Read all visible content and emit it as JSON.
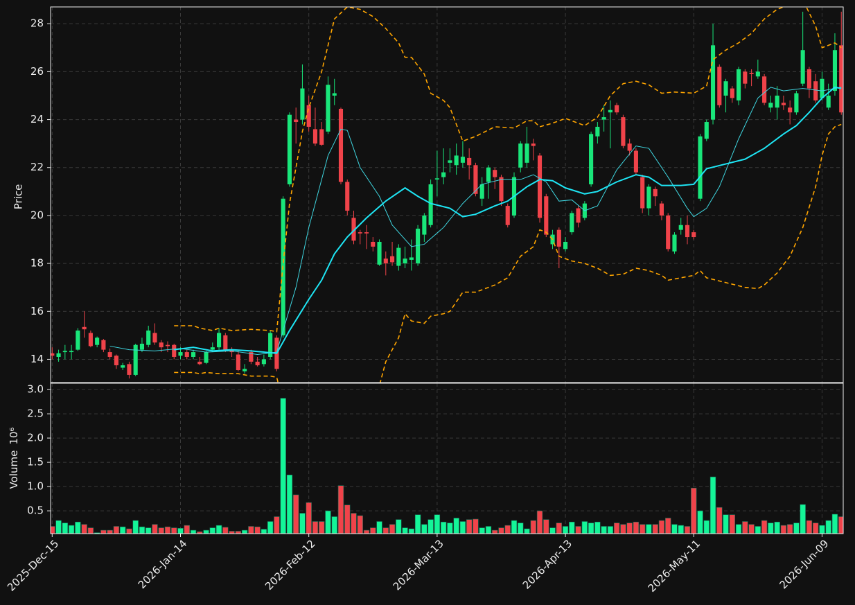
{
  "chart_data": [
    {
      "type": "candlestick",
      "ylabel": "Price",
      "up_color": "#19e67a",
      "down_color": "#f0434a",
      "grid": true,
      "xlim": [
        -0.25,
        123.3
      ],
      "ylim": [
        13.03,
        28.7
      ],
      "yticks": [
        14,
        16,
        18,
        20,
        22,
        24,
        26,
        28
      ],
      "open": [
        14.25,
        14.1,
        14.3,
        14.3,
        14.4,
        15.35,
        15.1,
        14.6,
        14.8,
        14.3,
        14.15,
        13.65,
        13.8,
        13.35,
        14.4,
        14.6,
        15.1,
        14.7,
        14.6,
        14.6,
        14.15,
        14.3,
        14.1,
        13.9,
        13.85,
        14.4,
        14.5,
        15.0,
        14.4,
        14.2,
        13.5,
        14.3,
        13.9,
        13.8,
        14.1,
        14.9,
        15.0,
        21.3,
        24.0,
        24.0,
        24.6,
        23.6,
        23.6,
        23.5,
        25.0,
        24.45,
        21.4,
        19.9,
        19.3,
        19.3,
        18.9,
        17.95,
        18.2,
        18.3,
        17.9,
        18.0,
        18.15,
        18.0,
        19.2,
        19.6,
        21.5,
        21.6,
        22.2,
        22.1,
        22.2,
        22.4,
        22.1,
        20.7,
        21.4,
        21.9,
        21.6,
        20.4,
        20.0,
        22.0,
        22.2,
        23.0,
        22.5,
        20.8,
        18.8,
        19.4,
        18.6,
        19.3,
        20.3,
        19.9,
        21.3,
        23.3,
        24.0,
        24.3,
        24.6,
        24.1,
        23.0,
        22.7,
        21.6,
        20.3,
        21.1,
        20.5,
        20.0,
        18.5,
        19.4,
        19.6,
        19.3,
        20.7,
        23.2,
        24.0,
        26.2,
        25.0,
        25.3,
        24.8,
        26.0,
        25.95,
        25.8,
        25.8,
        24.5,
        24.5,
        24.7,
        24.5,
        24.3,
        25.5,
        26.1,
        25.6,
        24.9,
        24.5,
        25.2,
        27.1
      ],
      "high": [
        14.5,
        14.4,
        14.6,
        14.6,
        15.3,
        16.0,
        15.2,
        14.95,
        14.85,
        14.45,
        14.2,
        13.85,
        13.9,
        14.65,
        14.9,
        15.4,
        15.5,
        14.8,
        14.75,
        14.65,
        14.5,
        14.4,
        14.4,
        14.1,
        14.35,
        14.7,
        15.3,
        15.1,
        14.5,
        14.4,
        13.8,
        14.4,
        14.1,
        14.2,
        15.2,
        15.0,
        20.8,
        24.3,
        24.5,
        26.3,
        25.0,
        24.5,
        23.9,
        25.8,
        25.7,
        24.5,
        21.5,
        20.2,
        19.4,
        19.6,
        19.1,
        19.0,
        18.5,
        18.9,
        18.8,
        18.7,
        19.0,
        19.6,
        20.1,
        21.5,
        22.7,
        22.8,
        22.8,
        23.0,
        23.1,
        22.8,
        22.2,
        21.6,
        22.1,
        22.0,
        21.7,
        20.5,
        21.8,
        23.1,
        23.7,
        23.2,
        22.6,
        20.9,
        19.4,
        19.5,
        19.1,
        20.2,
        20.4,
        20.6,
        23.5,
        23.9,
        24.6,
        24.8,
        24.7,
        24.2,
        23.2,
        22.8,
        21.7,
        21.3,
        21.2,
        20.6,
        20.1,
        19.3,
        19.9,
        20.0,
        19.4,
        23.4,
        24.0,
        28.0,
        26.3,
        25.7,
        25.4,
        26.2,
        26.1,
        26.1,
        26.5,
        25.9,
        25.0,
        25.4,
        25.0,
        24.8,
        25.2,
        28.5,
        26.2,
        25.9,
        26.0,
        25.5,
        27.6,
        28.5
      ],
      "low": [
        14.0,
        13.9,
        14.0,
        14.0,
        14.35,
        14.9,
        14.5,
        14.5,
        14.3,
        14.0,
        13.6,
        13.55,
        13.2,
        13.3,
        14.3,
        14.5,
        14.6,
        14.3,
        14.3,
        14.0,
        14.0,
        14.0,
        14.0,
        13.75,
        13.8,
        14.3,
        14.4,
        14.3,
        14.1,
        13.5,
        13.4,
        13.8,
        13.7,
        13.7,
        14.0,
        13.5,
        14.9,
        21.2,
        23.0,
        23.8,
        23.5,
        22.9,
        22.9,
        23.4,
        24.6,
        21.3,
        20.0,
        18.8,
        18.8,
        18.6,
        18.5,
        17.9,
        17.5,
        17.9,
        17.7,
        17.8,
        17.7,
        17.9,
        18.9,
        19.5,
        20.8,
        21.3,
        21.8,
        21.7,
        22.0,
        21.5,
        20.8,
        20.4,
        20.7,
        21.1,
        20.4,
        19.5,
        19.9,
        21.8,
        22.0,
        22.3,
        19.7,
        19.1,
        18.6,
        17.8,
        18.5,
        19.2,
        19.5,
        19.8,
        21.2,
        23.0,
        23.5,
        22.8,
        24.2,
        22.8,
        22.5,
        21.7,
        20.1,
        20.0,
        20.4,
        19.8,
        18.5,
        18.4,
        19.2,
        18.8,
        19.0,
        20.6,
        23.1,
        23.8,
        24.5,
        24.3,
        24.7,
        24.6,
        25.3,
        25.4,
        25.7,
        24.6,
        24.3,
        24.0,
        24.4,
        23.8,
        24.2,
        25.4,
        24.9,
        24.7,
        24.8,
        24.4,
        25.0,
        24.2
      ],
      "close": [
        14.15,
        14.25,
        14.35,
        14.35,
        15.2,
        15.25,
        14.55,
        14.9,
        14.4,
        14.1,
        13.75,
        13.75,
        13.35,
        14.6,
        14.65,
        15.2,
        14.7,
        14.5,
        14.55,
        14.1,
        14.3,
        14.1,
        14.3,
        13.8,
        14.3,
        14.5,
        15.1,
        14.4,
        14.3,
        13.55,
        13.6,
        13.9,
        13.75,
        14.0,
        15.1,
        13.6,
        20.7,
        24.2,
        23.9,
        25.3,
        23.7,
        23.0,
        22.95,
        25.45,
        25.1,
        21.4,
        20.2,
        18.95,
        19.25,
        19.25,
        18.7,
        18.9,
        18.0,
        18.05,
        18.65,
        18.2,
        18.25,
        19.45,
        20.0,
        21.3,
        21.55,
        21.8,
        22.3,
        22.5,
        22.45,
        22.1,
        20.9,
        21.3,
        22.0,
        21.6,
        20.6,
        19.6,
        21.6,
        23.0,
        23.0,
        22.9,
        19.9,
        19.2,
        19.2,
        18.7,
        18.9,
        20.1,
        19.7,
        20.5,
        23.4,
        23.7,
        24.1,
        24.4,
        24.3,
        22.9,
        22.7,
        21.8,
        20.3,
        21.2,
        20.8,
        20.0,
        18.6,
        19.2,
        19.6,
        19.1,
        19.1,
        23.3,
        23.9,
        27.1,
        24.6,
        25.6,
        24.9,
        26.1,
        25.5,
        25.9,
        26.0,
        24.7,
        24.7,
        25.0,
        24.6,
        24.3,
        25.1,
        26.9,
        25.3,
        24.8,
        25.7,
        25.0,
        26.9,
        24.3
      ],
      "series": [
        {
          "color": "#ffa500",
          "dash": true,
          "width": 1.6,
          "x": [
            19,
            22,
            23,
            25,
            26,
            28,
            31,
            34,
            35,
            36,
            37,
            39,
            40,
            42,
            44,
            46,
            48,
            50,
            52,
            54,
            55,
            56,
            58,
            59,
            61,
            62,
            64,
            66,
            69,
            72,
            74,
            75,
            76,
            78,
            80,
            83,
            85,
            87,
            89,
            91,
            93,
            95,
            97,
            100,
            102,
            103,
            105,
            107,
            109,
            111,
            113,
            117,
            119,
            120,
            122,
            123
          ],
          "values": [
            15.4,
            15.4,
            15.3,
            15.2,
            15.3,
            15.2,
            15.25,
            15.2,
            15.15,
            18.0,
            20.5,
            23.5,
            24.5,
            26.0,
            28.2,
            28.7,
            28.6,
            28.3,
            27.8,
            27.2,
            26.6,
            26.6,
            25.9,
            25.1,
            24.8,
            24.5,
            23.1,
            23.3,
            23.7,
            23.65,
            23.95,
            23.95,
            23.7,
            23.85,
            24.05,
            23.75,
            24.1,
            25.0,
            25.5,
            25.6,
            25.45,
            25.1,
            25.15,
            25.1,
            25.4,
            26.5,
            26.9,
            27.2,
            27.6,
            28.2,
            28.6,
            29.0,
            27.9,
            27.0,
            27.2,
            27.0
          ]
        },
        {
          "color": "#ffa500",
          "dash": true,
          "width": 1.6,
          "x": [
            19,
            22,
            23,
            24,
            26,
            29,
            31,
            34,
            35,
            36,
            51,
            52,
            54,
            55,
            56,
            58,
            59,
            61,
            62,
            64,
            66,
            69,
            71,
            73,
            75,
            76,
            77,
            78,
            79,
            81,
            83,
            85,
            87,
            89,
            91,
            93,
            95,
            96,
            98,
            100,
            101,
            102,
            105,
            108,
            110,
            111,
            113,
            115,
            117,
            119,
            120,
            121,
            122,
            123
          ],
          "values": [
            13.45,
            13.45,
            13.4,
            13.45,
            13.4,
            13.4,
            13.3,
            13.3,
            13.25,
            12.2,
            12.9,
            13.9,
            14.9,
            15.9,
            15.6,
            15.5,
            15.8,
            15.9,
            16.0,
            16.8,
            16.8,
            17.1,
            17.4,
            18.3,
            18.7,
            19.4,
            19.3,
            19.0,
            18.3,
            18.1,
            18.0,
            17.8,
            17.5,
            17.55,
            17.8,
            17.7,
            17.5,
            17.3,
            17.4,
            17.5,
            17.7,
            17.4,
            17.2,
            17.0,
            16.95,
            17.1,
            17.6,
            18.3,
            19.5,
            21.2,
            22.5,
            23.4,
            23.7,
            23.8
          ]
        },
        {
          "color": "#3fd6e0",
          "dash": false,
          "width": 1,
          "x": [
            9,
            12,
            16,
            20,
            24,
            28,
            32,
            35,
            38,
            40,
            43,
            45,
            46,
            48,
            51,
            53,
            56,
            58,
            61,
            64,
            67,
            70,
            73,
            75,
            77,
            79,
            81,
            83,
            85,
            88,
            91,
            93,
            96,
            99,
            100,
            102,
            104,
            107,
            110,
            112,
            114,
            117,
            120,
            123
          ],
          "values": [
            14.55,
            14.4,
            14.35,
            14.45,
            14.3,
            14.35,
            14.2,
            14.3,
            17.0,
            19.5,
            22.5,
            23.6,
            23.55,
            22.0,
            20.8,
            19.6,
            18.7,
            18.8,
            19.5,
            20.5,
            21.3,
            21.5,
            21.5,
            21.7,
            21.4,
            20.6,
            20.65,
            20.2,
            20.4,
            21.9,
            22.9,
            22.8,
            21.6,
            20.3,
            19.95,
            20.3,
            21.2,
            23.2,
            24.9,
            25.35,
            25.2,
            25.3,
            25.2,
            25.35
          ]
        },
        {
          "color": "#1ee6f5",
          "dash": false,
          "width": 2,
          "x": [
            19,
            22,
            25,
            28,
            31,
            35,
            37,
            40,
            42,
            44,
            46,
            49,
            52,
            55,
            57,
            59,
            62,
            64,
            66,
            69,
            71,
            74,
            76,
            78,
            80,
            83,
            85,
            88,
            91,
            93,
            95,
            98,
            100,
            102,
            105,
            108,
            111,
            114,
            116,
            118,
            120,
            122,
            123
          ],
          "values": [
            14.4,
            14.5,
            14.35,
            14.4,
            14.35,
            14.25,
            15.2,
            16.5,
            17.3,
            18.4,
            19.1,
            19.9,
            20.6,
            21.15,
            20.8,
            20.5,
            20.3,
            19.95,
            20.05,
            20.4,
            20.6,
            21.2,
            21.5,
            21.45,
            21.15,
            20.9,
            21.0,
            21.4,
            21.7,
            21.6,
            21.25,
            21.25,
            21.3,
            21.95,
            22.15,
            22.35,
            22.8,
            23.4,
            23.75,
            24.3,
            24.9,
            25.35,
            25.3
          ]
        }
      ]
    },
    {
      "type": "bar",
      "ylabel": "Volume",
      "offset_label": "10⁶",
      "up_color": "#14f598",
      "down_color": "#f0434a",
      "grid": true,
      "xlim": [
        -0.25,
        123.3
      ],
      "ylim": [
        0.03,
        3.13
      ],
      "yticks": [
        0.5,
        {
          "value": 1,
          "label": "1.0"
        },
        1.5,
        {
          "value": 2,
          "label": "2.0"
        },
        2.5,
        {
          "value": 3,
          "label": "3.0"
        }
      ],
      "xticks": [
        {
          "value": 0,
          "label": "2025-Dec-15"
        },
        {
          "value": 20,
          "label": "2026-Jan-14"
        },
        {
          "value": 40,
          "label": "2026-Feb-12"
        },
        {
          "value": 60,
          "label": "2026-Mar-13"
        },
        {
          "value": 80,
          "label": "2026-Apr-13"
        },
        {
          "value": 100,
          "label": "2026-May-11"
        },
        {
          "value": 120,
          "label": "2026-Jun-09"
        }
      ],
      "values": [
        0.18,
        0.3,
        0.25,
        0.2,
        0.27,
        0.22,
        0.15,
        0.05,
        0.1,
        0.1,
        0.18,
        0.17,
        0.13,
        0.3,
        0.17,
        0.15,
        0.22,
        0.15,
        0.17,
        0.15,
        0.14,
        0.2,
        0.1,
        0.07,
        0.1,
        0.15,
        0.2,
        0.16,
        0.08,
        0.08,
        0.1,
        0.18,
        0.17,
        0.12,
        0.28,
        0.38,
        2.82,
        1.24,
        0.83,
        0.45,
        0.67,
        0.28,
        0.28,
        0.5,
        0.38,
        1.02,
        0.62,
        0.45,
        0.4,
        0.1,
        0.15,
        0.28,
        0.15,
        0.22,
        0.32,
        0.15,
        0.13,
        0.42,
        0.22,
        0.32,
        0.42,
        0.27,
        0.25,
        0.35,
        0.28,
        0.32,
        0.33,
        0.15,
        0.18,
        0.1,
        0.15,
        0.2,
        0.3,
        0.25,
        0.13,
        0.3,
        0.5,
        0.32,
        0.15,
        0.25,
        0.18,
        0.27,
        0.18,
        0.28,
        0.25,
        0.27,
        0.18,
        0.18,
        0.25,
        0.22,
        0.25,
        0.27,
        0.22,
        0.22,
        0.22,
        0.3,
        0.35,
        0.22,
        0.2,
        0.18,
        0.97,
        0.5,
        0.3,
        1.2,
        0.57,
        0.42,
        0.42,
        0.22,
        0.28,
        0.22,
        0.18,
        0.3,
        0.25,
        0.27,
        0.2,
        0.22,
        0.25,
        0.63,
        0.3,
        0.25,
        0.2,
        0.3,
        0.43,
        0.38
      ]
    }
  ]
}
